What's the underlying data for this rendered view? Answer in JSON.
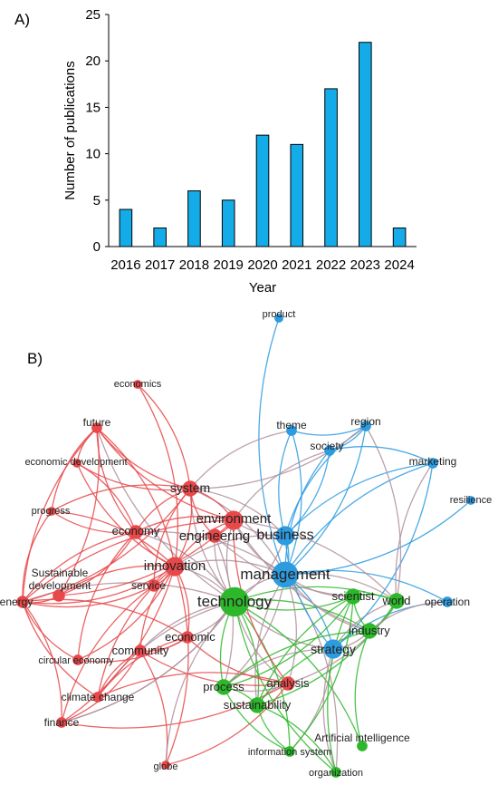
{
  "panels": {
    "a_label": "A)",
    "b_label": "B)"
  },
  "chart_data": [
    {
      "type": "bar",
      "title": "",
      "xlabel": "Year",
      "ylabel": "Number of publications",
      "categories": [
        "2016",
        "2017",
        "2018",
        "2019",
        "2020",
        "2021",
        "2022",
        "2023",
        "2024"
      ],
      "values": [
        4,
        2,
        6,
        5,
        12,
        11,
        17,
        22,
        2
      ],
      "ylim": [
        0,
        25
      ],
      "yticks": [
        0,
        5,
        10,
        15,
        20,
        25
      ],
      "grid": false,
      "colors": {
        "bar": "#14ACE8",
        "bar_edge": "#000000"
      }
    },
    {
      "type": "network",
      "title": "",
      "colors": {
        "cluster_red": "#E8484A",
        "cluster_green": "#2DB82B",
        "cluster_blue": "#2D9BE0",
        "edge_mixed": "#B0909C"
      },
      "nodes": [
        {
          "id": "product",
          "label": "product",
          "cluster": "blue",
          "weight": 1
        },
        {
          "id": "economics",
          "label": "economics",
          "cluster": "red",
          "weight": 1
        },
        {
          "id": "future",
          "label": "future",
          "cluster": "red",
          "weight": 1.5
        },
        {
          "id": "theme",
          "label": "theme",
          "cluster": "blue",
          "weight": 1.5
        },
        {
          "id": "region",
          "label": "region",
          "cluster": "blue",
          "weight": 1.5
        },
        {
          "id": "society",
          "label": "society",
          "cluster": "blue",
          "weight": 1.5
        },
        {
          "id": "economic_development",
          "label": "economic development",
          "cluster": "red",
          "weight": 1
        },
        {
          "id": "marketing",
          "label": "marketing",
          "cluster": "blue",
          "weight": 1.5
        },
        {
          "id": "system",
          "label": "system",
          "cluster": "red",
          "weight": 3
        },
        {
          "id": "resilience",
          "label": "resilience",
          "cluster": "blue",
          "weight": 1
        },
        {
          "id": "progress",
          "label": "progress",
          "cluster": "red",
          "weight": 1
        },
        {
          "id": "environment",
          "label": "environment",
          "cluster": "red",
          "weight": 4
        },
        {
          "id": "economy",
          "label": "economy",
          "cluster": "red",
          "weight": 2.5
        },
        {
          "id": "engineering",
          "label": "engineering",
          "cluster": "red",
          "weight": 2.5
        },
        {
          "id": "business",
          "label": "business",
          "cluster": "blue",
          "weight": 4
        },
        {
          "id": "innovation",
          "label": "innovation",
          "cluster": "red",
          "weight": 4
        },
        {
          "id": "management",
          "label": "management",
          "cluster": "blue",
          "weight": 6
        },
        {
          "id": "sustainable_development",
          "label": "Sustainable development",
          "cluster": "red",
          "weight": 2
        },
        {
          "id": "service",
          "label": "service",
          "cluster": "red",
          "weight": 2
        },
        {
          "id": "energy",
          "label": "energy",
          "cluster": "red",
          "weight": 2
        },
        {
          "id": "technology",
          "label": "technology",
          "cluster": "green",
          "weight": 7
        },
        {
          "id": "scientist",
          "label": "scientist",
          "cluster": "green",
          "weight": 3
        },
        {
          "id": "world",
          "label": "world",
          "cluster": "green",
          "weight": 3
        },
        {
          "id": "operation",
          "label": "operation",
          "cluster": "blue",
          "weight": 1.5
        },
        {
          "id": "economic",
          "label": "economic",
          "cluster": "red",
          "weight": 2
        },
        {
          "id": "industry",
          "label": "industry",
          "cluster": "green",
          "weight": 3
        },
        {
          "id": "community",
          "label": "community",
          "cluster": "red",
          "weight": 2
        },
        {
          "id": "strategy",
          "label": "strategy",
          "cluster": "blue",
          "weight": 4
        },
        {
          "id": "circular_economy",
          "label": "circular economy",
          "cluster": "red",
          "weight": 1.5
        },
        {
          "id": "process",
          "label": "process",
          "cluster": "green",
          "weight": 3
        },
        {
          "id": "analysis",
          "label": "analysis",
          "cluster": "red",
          "weight": 2.5
        },
        {
          "id": "climate_change",
          "label": "climate change",
          "cluster": "red",
          "weight": 1.5
        },
        {
          "id": "sustainability",
          "label": "sustainability",
          "cluster": "green",
          "weight": 3
        },
        {
          "id": "finance",
          "label": "finance",
          "cluster": "red",
          "weight": 1.5
        },
        {
          "id": "artificial_intelligence",
          "label": "Artificial intelligence",
          "cluster": "green",
          "weight": 1.5
        },
        {
          "id": "information_system",
          "label": "information system",
          "cluster": "green",
          "weight": 1.5
        },
        {
          "id": "globe",
          "label": "globe",
          "cluster": "red",
          "weight": 1
        },
        {
          "id": "organization",
          "label": "organization",
          "cluster": "green",
          "weight": 1.5
        }
      ],
      "edges": [
        [
          "technology",
          "management"
        ],
        [
          "technology",
          "innovation"
        ],
        [
          "technology",
          "environment"
        ],
        [
          "technology",
          "business"
        ],
        [
          "technology",
          "system"
        ],
        [
          "technology",
          "strategy"
        ],
        [
          "technology",
          "industry"
        ],
        [
          "technology",
          "process"
        ],
        [
          "technology",
          "sustainability"
        ],
        [
          "technology",
          "analysis"
        ],
        [
          "technology",
          "world"
        ],
        [
          "technology",
          "scientist"
        ],
        [
          "technology",
          "economic"
        ],
        [
          "technology",
          "community"
        ],
        [
          "technology",
          "engineering"
        ],
        [
          "technology",
          "economy"
        ],
        [
          "technology",
          "information_system"
        ],
        [
          "technology",
          "organization"
        ],
        [
          "technology",
          "artificial_intelligence"
        ],
        [
          "technology",
          "energy"
        ],
        [
          "technology",
          "future"
        ],
        [
          "technology",
          "climate_change"
        ],
        [
          "technology",
          "finance"
        ],
        [
          "management",
          "business"
        ],
        [
          "management",
          "strategy"
        ],
        [
          "management",
          "industry"
        ],
        [
          "management",
          "world"
        ],
        [
          "management",
          "scientist"
        ],
        [
          "management",
          "marketing"
        ],
        [
          "management",
          "region"
        ],
        [
          "management",
          "society"
        ],
        [
          "management",
          "theme"
        ],
        [
          "management",
          "operation"
        ],
        [
          "management",
          "resilience"
        ],
        [
          "management",
          "product"
        ],
        [
          "management",
          "innovation"
        ],
        [
          "management",
          "environment"
        ],
        [
          "management",
          "system"
        ],
        [
          "management",
          "process"
        ],
        [
          "management",
          "sustainability"
        ],
        [
          "management",
          "analysis"
        ],
        [
          "management",
          "economy"
        ],
        [
          "management",
          "organization"
        ],
        [
          "business",
          "strategy"
        ],
        [
          "business",
          "marketing"
        ],
        [
          "business",
          "society"
        ],
        [
          "business",
          "region"
        ],
        [
          "business",
          "innovation"
        ],
        [
          "business",
          "environment"
        ],
        [
          "business",
          "system"
        ],
        [
          "business",
          "theme"
        ],
        [
          "strategy",
          "industry"
        ],
        [
          "strategy",
          "world"
        ],
        [
          "strategy",
          "process"
        ],
        [
          "strategy",
          "operation"
        ],
        [
          "strategy",
          "marketing"
        ],
        [
          "strategy",
          "information_system"
        ],
        [
          "strategy",
          "organization"
        ],
        [
          "innovation",
          "environment"
        ],
        [
          "innovation",
          "system"
        ],
        [
          "innovation",
          "economy"
        ],
        [
          "innovation",
          "future"
        ],
        [
          "innovation",
          "economic_development"
        ],
        [
          "innovation",
          "progress"
        ],
        [
          "innovation",
          "energy"
        ],
        [
          "innovation",
          "sustainable_development"
        ],
        [
          "innovation",
          "service"
        ],
        [
          "innovation",
          "community"
        ],
        [
          "innovation",
          "circular_economy"
        ],
        [
          "innovation",
          "climate_change"
        ],
        [
          "innovation",
          "finance"
        ],
        [
          "innovation",
          "economics"
        ],
        [
          "innovation",
          "economic"
        ],
        [
          "environment",
          "system"
        ],
        [
          "environment",
          "engineering"
        ],
        [
          "environment",
          "economy"
        ],
        [
          "environment",
          "future"
        ],
        [
          "environment",
          "energy"
        ],
        [
          "environment",
          "sustainable_development"
        ],
        [
          "environment",
          "analysis"
        ],
        [
          "environment",
          "world"
        ],
        [
          "environment",
          "industry"
        ],
        [
          "environment",
          "society"
        ],
        [
          "system",
          "economy"
        ],
        [
          "system",
          "future"
        ],
        [
          "system",
          "economics"
        ],
        [
          "system",
          "economic_development"
        ],
        [
          "system",
          "progress"
        ],
        [
          "system",
          "energy"
        ],
        [
          "system",
          "service"
        ],
        [
          "system",
          "theme"
        ],
        [
          "system",
          "region"
        ],
        [
          "economy",
          "future"
        ],
        [
          "economy",
          "economic_development"
        ],
        [
          "economy",
          "progress"
        ],
        [
          "economy",
          "energy"
        ],
        [
          "economy",
          "sustainable_development"
        ],
        [
          "economy",
          "circular_economy"
        ],
        [
          "energy",
          "future"
        ],
        [
          "energy",
          "sustainable_development"
        ],
        [
          "energy",
          "finance"
        ],
        [
          "energy",
          "climate_change"
        ],
        [
          "energy",
          "progress"
        ],
        [
          "energy",
          "circular_economy"
        ],
        [
          "energy",
          "economic"
        ],
        [
          "future",
          "economic_development"
        ],
        [
          "future",
          "sustainable_development"
        ],
        [
          "future",
          "progress"
        ],
        [
          "economic",
          "community"
        ],
        [
          "economic",
          "analysis"
        ],
        [
          "economic",
          "circular_economy"
        ],
        [
          "economic",
          "climate_change"
        ],
        [
          "community",
          "finance"
        ],
        [
          "community",
          "climate_change"
        ],
        [
          "community",
          "globe"
        ],
        [
          "community",
          "analysis"
        ],
        [
          "analysis",
          "process"
        ],
        [
          "analysis",
          "sustainability"
        ],
        [
          "analysis",
          "finance"
        ],
        [
          "analysis",
          "climate_change"
        ],
        [
          "analysis",
          "globe"
        ],
        [
          "analysis",
          "world"
        ],
        [
          "process",
          "sustainability"
        ],
        [
          "process",
          "information_system"
        ],
        [
          "process",
          "industry"
        ],
        [
          "process",
          "scientist"
        ],
        [
          "sustainability",
          "industry"
        ],
        [
          "sustainability",
          "world"
        ],
        [
          "sustainability",
          "organization"
        ],
        [
          "sustainability",
          "information_system"
        ],
        [
          "sustainability",
          "scientist"
        ],
        [
          "industry",
          "world"
        ],
        [
          "industry",
          "scientist"
        ],
        [
          "industry",
          "artificial_intelligence"
        ],
        [
          "industry",
          "operation"
        ],
        [
          "world",
          "scientist"
        ],
        [
          "world",
          "marketing"
        ],
        [
          "world",
          "region"
        ],
        [
          "scientist",
          "information_system"
        ],
        [
          "scientist",
          "organization"
        ],
        [
          "service",
          "innovation"
        ],
        [
          "service",
          "finance"
        ],
        [
          "service",
          "energy"
        ],
        [
          "society",
          "region"
        ],
        [
          "society",
          "marketing"
        ],
        [
          "theme",
          "region"
        ],
        [
          "engineering",
          "process"
        ],
        [
          "engineering",
          "scientist"
        ],
        [
          "engineering",
          "system"
        ],
        [
          "globe",
          "innovation"
        ],
        [
          "globe",
          "technology"
        ],
        [
          "finance",
          "technology"
        ]
      ]
    }
  ]
}
